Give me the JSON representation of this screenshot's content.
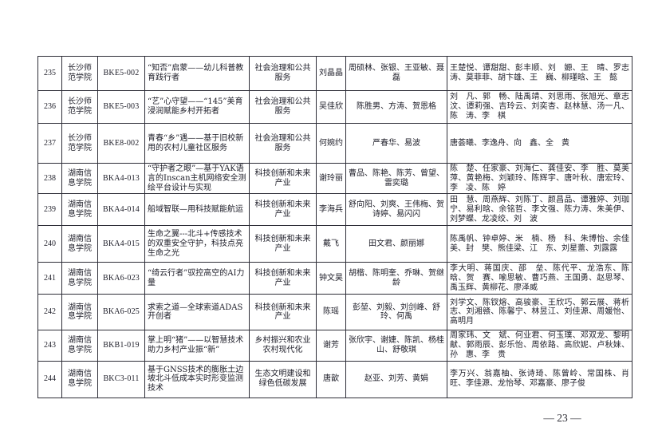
{
  "page": {
    "number_label": "— 23 —"
  },
  "table": {
    "column_keys": [
      "num",
      "school",
      "code",
      "title",
      "category",
      "leader",
      "advisors",
      "members"
    ],
    "rows": [
      {
        "num": "235",
        "school": "长沙师范学院",
        "code": "BKE5-002",
        "title": "“知否”启蒙——幼儿科普教育践行者",
        "category": "社会治理和公共服务",
        "leader": "刘晶晶",
        "advisors": [
          "周硕林",
          "张银",
          "王亚敏",
          "聂磊"
        ],
        "members": [
          "王楚悦",
          "谭甜甜",
          "彭丰顺",
          "刘　嫄",
          "王　晴",
          "罗志涛",
          "莫菲菲",
          "胡卞雄",
          "王　巍",
          "柳瑾晗",
          "王　懿"
        ]
      },
      {
        "num": "236",
        "school": "长沙师范学院",
        "code": "BKE5-003",
        "title": "“艺”心守望——“145”美育浸润赋能乡村开拓者",
        "category": "社会治理和公共服务",
        "leader": "吴佳欣",
        "advisors": [
          "陈胜男",
          "方涛",
          "贺恩格"
        ],
        "members": [
          "刘　凡",
          "郭　畅",
          "陆禹靖",
          "刘思雨",
          "张旭光",
          "章志汶",
          "谭莉强",
          "吉玲云",
          "刘奕杏",
          "赵林慧",
          "汤一凡",
          "陈　涛",
          "李　棋"
        ]
      },
      {
        "num": "237",
        "school": "长沙师范学院",
        "code": "BKE8-002",
        "title": "青春“乡”遇——基于旧校新用的农村儿童社区服务",
        "category": "社会治理和公共服务",
        "leader": "何婉约",
        "advisors": [
          "严春华",
          "易波"
        ],
        "members": [
          "唐荟曦",
          "李逸舟",
          "向　鑫",
          "全　黄"
        ]
      },
      {
        "num": "238",
        "school": "湖南信息学院",
        "code": "BKA4-013",
        "title": "“守护者之眼”—基于YAK语言的Inscan主机网络安全测绘平台设计与实现",
        "category": "科技创新和未来产业",
        "leader": "谢玲丽",
        "advisors": [
          "曹品",
          "陈艳",
          "陈芳",
          "曾望",
          "雷奕璐"
        ],
        "members": [
          "陈　楚",
          "任家豪",
          "刘海仁",
          "龚佳安",
          "李　胜",
          "莫美萍",
          "黄艳梅",
          "刘颖玲",
          "陈辉宇",
          "唐叶秋",
          "唐宏玲",
          "李　凌",
          "陈　婷"
        ]
      },
      {
        "num": "239",
        "school": "湖南信息学院",
        "code": "BKA4-014",
        "title": "船域智联—用科技赋能航运",
        "category": "科技创新和未来产业",
        "leader": "李海兵",
        "advisors": [
          "舒向阳",
          "刘爽",
          "王伟梅",
          "贺诗婷",
          "易闪闪"
        ],
        "members": [
          "田　慧",
          "周燕辉",
          "刘陈丁",
          "颜昌品",
          "谭雅婷",
          "刘珈宁",
          "易利晗",
          "余铭哲",
          "李文强",
          "陈力涛",
          "朱美伊",
          "刘梦蝶",
          "龙凌绞",
          "刘　波"
        ]
      },
      {
        "num": "240",
        "school": "湖南信息学院",
        "code": "BKA4-015",
        "title": "生命之翼---北斗+传感技术的双重安全守护，科技点亮生命之光",
        "category": "科技创新和未来产业",
        "leader": "戴飞",
        "advisors": [
          "田文君",
          "颜丽娜"
        ],
        "members": [
          "陈禹帆",
          "钟卓婷",
          "米　楠",
          "杨　科",
          "朱博怡",
          "余佳美",
          "封　樊",
          "熊佳梁",
          "江　东",
          "刘星蕾",
          "刘露露"
        ]
      },
      {
        "num": "241",
        "school": "湖南信息学院",
        "code": "BKA6-023",
        "title": "“绮云行者”驭控高空的AI力量",
        "category": "科技创新和未来产业",
        "leader": "钟文昊",
        "advisors": [
          "胡楷",
          "陈明奎",
          "乔琳",
          "贺继龄"
        ],
        "members": [
          "李大明",
          "蒋国庆",
          "邵　垒",
          "陈代平",
          "龙浩东",
          "陈　晗",
          "贺　赛",
          "喻思敏",
          "曹巧燕",
          "王国勇",
          "赵思琴",
          "禹玉辉",
          "黄柳花",
          "廖泽威"
        ]
      },
      {
        "num": "242",
        "school": "湖南信息学院",
        "code": "BKA6-025",
        "title": "求索之道—全球索道ADAS开创者",
        "category": "科技创新和未来产业",
        "leader": "陈瑶",
        "advisors": [
          "彭堃",
          "刘毅",
          "刘剑峰",
          "舒玲",
          "何禹"
        ],
        "members": [
          "刘学文",
          "陈钗熔",
          "高骏豪",
          "王欣巧",
          "郭云展",
          "蒋析志",
          "刘湘赣",
          "陈馨宁",
          "林昱江",
          "刘佳源",
          "周媛怡",
          "高明月"
        ]
      },
      {
        "num": "243",
        "school": "湖南信息学院",
        "code": "BKB1-019",
        "title": "掌上明“猪”——以智慧技术助力乡村产业振“新”",
        "category": "乡村振兴和农业农村现代化",
        "leader": "谢芳",
        "advisors": [
          "张欣宇",
          "谢婕",
          "陈凯",
          "杨桂山",
          "舒敬琪"
        ],
        "members": [
          "周家玮",
          "文　斌",
          "何业君",
          "何玉璞",
          "邓双龙",
          "黎明献",
          "郭雨辰",
          "彭乐怡",
          "周依路",
          "高欣妮",
          "卢秋妹",
          "孙　惠",
          "李　贵"
        ]
      },
      {
        "num": "244",
        "school": "湖南信息学院",
        "code": "BKC3-011",
        "title": "基于GNSS技术的膨胀土边坡北斗低成本实时形变监测技术",
        "category": "生态文明建设和绿色低碳发展",
        "leader": "唐歆",
        "advisors": [
          "赵亚",
          "刘芳",
          "黄娟"
        ],
        "members": [
          "李万兴",
          "翁嘉柚",
          "张诗琦",
          "陈曾岭",
          "常国株",
          "肖　旺",
          "李佳源",
          "龙怡琴",
          "邓嘉豪",
          "廖子俊"
        ]
      }
    ]
  }
}
